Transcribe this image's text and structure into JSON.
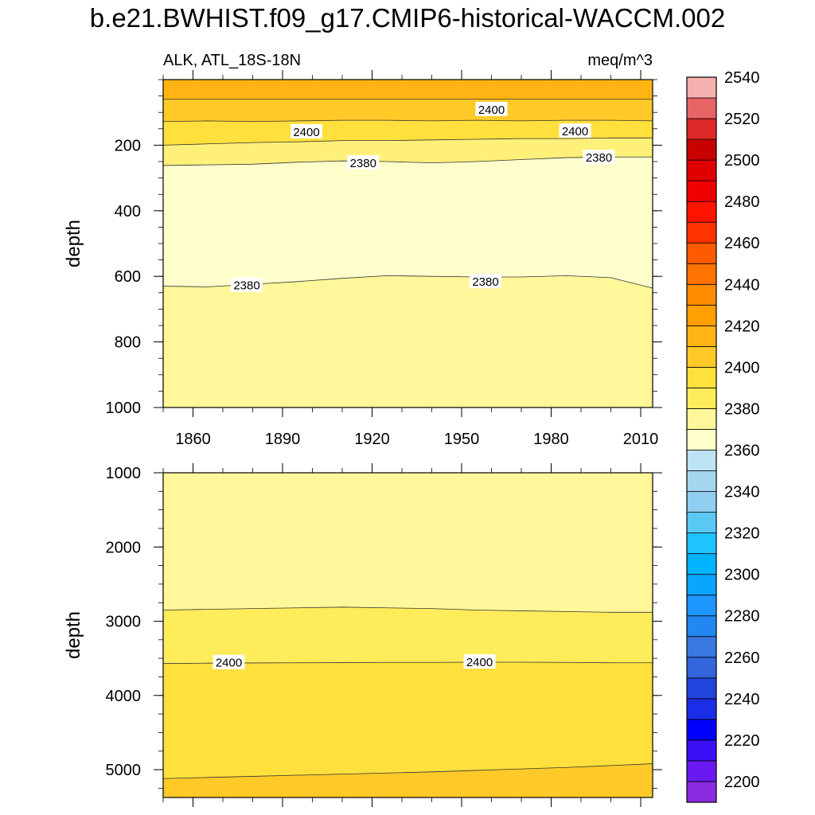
{
  "figure": {
    "title": "b.e21.BWHIST.f09_g17.CMIP6-historical-WACCM.002"
  },
  "chart_data": [
    {
      "type": "heatmap",
      "subtype": "filled-contour",
      "panel": "upper",
      "left_string": "ALK, ATL_18S-18N",
      "right_string": "meq/m^3",
      "ylabel": "depth",
      "y_reversed": true,
      "xlim": [
        1850,
        2014
      ],
      "ylim": [
        0,
        1000
      ],
      "x_ticks": [
        1860,
        1890,
        1920,
        1950,
        1980,
        2010
      ],
      "x_tick_labels": [
        "1860",
        "1890",
        "1920",
        "1950",
        "1980",
        "2010"
      ],
      "y_ticks": [
        200,
        400,
        600,
        800,
        1000
      ],
      "y_tick_labels": [
        "200",
        "400",
        "600",
        "800",
        "1000"
      ],
      "x_samples": [
        1850,
        1865,
        1880,
        1895,
        1910,
        1925,
        1940,
        1955,
        1970,
        1985,
        2000,
        2014
      ],
      "bands": [
        {
          "level_top": 2420,
          "level_bottom": 2425,
          "color": "#FFB414",
          "depth": [
            60,
            60,
            60,
            60,
            60,
            60,
            60,
            60,
            60,
            60,
            60,
            60
          ]
        },
        {
          "level_top": 2410,
          "level_bottom": 2420,
          "color": "#FFCA28",
          "depth": [
            128,
            126,
            128,
            126,
            124,
            124,
            126,
            124,
            126,
            124,
            124,
            126
          ]
        },
        {
          "level_top": 2400,
          "level_bottom": 2410,
          "color": "#FFE03C",
          "depth": [
            200,
            196,
            192,
            190,
            186,
            186,
            184,
            182,
            180,
            180,
            178,
            178
          ]
        },
        {
          "level_top": 2390,
          "level_bottom": 2400,
          "color": "#FFF07A",
          "depth": [
            262,
            260,
            258,
            252,
            248,
            250,
            254,
            250,
            244,
            238,
            236,
            236
          ]
        },
        {
          "level_top": 2380,
          "level_bottom": 2390,
          "color": "#FFFFCC",
          "depth": [
            630,
            632,
            624,
            616,
            606,
            598,
            600,
            602,
            602,
            598,
            604,
            636
          ]
        },
        {
          "level_top": 2390,
          "level_bottom": 2390,
          "color": "#FFF799",
          "depth": [
            1000,
            1000,
            1000,
            1000,
            1000,
            1000,
            1000,
            1000,
            1000,
            1000,
            1000,
            1000
          ]
        }
      ],
      "contour_labels": [
        {
          "text": "2400",
          "x": 1960,
          "y": 92
        },
        {
          "text": "2400",
          "x": 1898,
          "y": 160
        },
        {
          "text": "2400",
          "x": 1988,
          "y": 158
        },
        {
          "text": "2380",
          "x": 1917,
          "y": 255
        },
        {
          "text": "2380",
          "x": 1996,
          "y": 238
        },
        {
          "text": "2380",
          "x": 1878,
          "y": 628
        },
        {
          "text": "2380",
          "x": 1958,
          "y": 617
        }
      ]
    },
    {
      "type": "heatmap",
      "subtype": "filled-contour",
      "panel": "lower",
      "ylabel": "depth",
      "y_reversed": true,
      "xlim": [
        1850,
        2014
      ],
      "ylim": [
        1000,
        5375
      ],
      "y_ticks": [
        1000,
        2000,
        3000,
        4000,
        5000
      ],
      "y_tick_labels": [
        "1000",
        "2000",
        "3000",
        "4000",
        "5000"
      ],
      "x_samples": [
        1850,
        1865,
        1880,
        1895,
        1910,
        1925,
        1940,
        1955,
        1970,
        1985,
        2000,
        2014
      ],
      "bands": [
        {
          "level": 2390,
          "color": "#FFF799",
          "depth": [
            2850,
            2840,
            2830,
            2820,
            2810,
            2820,
            2830,
            2850,
            2860,
            2870,
            2880,
            2880
          ]
        },
        {
          "level": 2400,
          "color": "#FFEC5A",
          "depth": [
            3570,
            3565,
            3562,
            3560,
            3558,
            3555,
            3555,
            3552,
            3552,
            3555,
            3560,
            3560
          ]
        },
        {
          "level": 2410,
          "color": "#FFE03C",
          "depth": [
            5120,
            5105,
            5090,
            5075,
            5060,
            5045,
            5030,
            5010,
            4990,
            4970,
            4945,
            4920
          ]
        },
        {
          "level": 2420,
          "color": "#FFCA28",
          "depth": [
            5375,
            5375,
            5375,
            5375,
            5375,
            5375,
            5375,
            5375,
            5375,
            5375,
            5375,
            5375
          ]
        }
      ],
      "contour_labels": [
        {
          "text": "2400",
          "x": 1872,
          "y": 3560
        },
        {
          "text": "2400",
          "x": 1956,
          "y": 3552
        }
      ]
    }
  ],
  "colorbar": {
    "tick_labels": [
      "2200",
      "2220",
      "2240",
      "2260",
      "2280",
      "2300",
      "2320",
      "2340",
      "2360",
      "2380",
      "2400",
      "2420",
      "2440",
      "2460",
      "2480",
      "2500",
      "2520",
      "2540"
    ],
    "colors": [
      "#8A2BE2",
      "#6A1AF0",
      "#3A10F5",
      "#0000FF",
      "#1A2EE8",
      "#2244DD",
      "#3366DD",
      "#3A78E0",
      "#2287F0",
      "#1E96FF",
      "#0AA5FF",
      "#00B4FF",
      "#1EC3FF",
      "#5AC8F5",
      "#8FCEEE",
      "#A5D6EF",
      "#BEE3F2",
      "#FFFFCC",
      "#FFF799",
      "#FFEC5A",
      "#FFE03C",
      "#FFCA28",
      "#FFB414",
      "#FF9F00",
      "#FF8C00",
      "#FF7300",
      "#FF5A00",
      "#FF3200",
      "#FF1400",
      "#F00000",
      "#E00000",
      "#C80000",
      "#DC2828",
      "#E86464",
      "#F7B0B0"
    ]
  }
}
